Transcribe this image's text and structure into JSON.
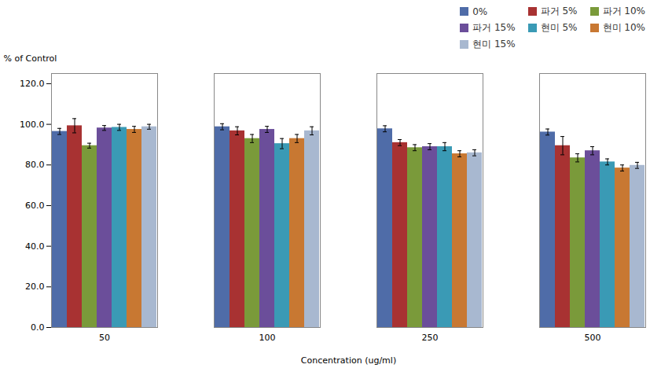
{
  "chart_data": {
    "type": "bar",
    "categories": [
      "50",
      "100",
      "250",
      "500"
    ],
    "series": [
      {
        "name": "0%",
        "color": "#4F6CA8",
        "values": [
          96.5,
          98.8,
          97.8,
          96.2
        ],
        "errors": [
          1.5,
          1.5,
          1.5,
          1.5
        ]
      },
      {
        "name": "파거 5%",
        "color": "#A83232",
        "values": [
          99.3,
          96.8,
          91.0,
          89.5
        ],
        "errors": [
          3.5,
          2.0,
          1.5,
          4.5
        ]
      },
      {
        "name": "파거 10%",
        "color": "#7A9A3A",
        "values": [
          89.5,
          93.0,
          88.5,
          83.5
        ],
        "errors": [
          1.2,
          2.0,
          1.5,
          2.0
        ]
      },
      {
        "name": "파거 15%",
        "color": "#6B4E9A",
        "values": [
          98.2,
          97.5,
          89.0,
          87.0
        ],
        "errors": [
          1.2,
          1.5,
          1.5,
          2.0
        ]
      },
      {
        "name": "현미 5%",
        "color": "#3A9AB5",
        "values": [
          98.5,
          90.5,
          89.0,
          81.5
        ],
        "errors": [
          1.5,
          2.5,
          2.0,
          1.5
        ]
      },
      {
        "name": "현미 10%",
        "color": "#C87832",
        "values": [
          97.5,
          93.0,
          85.5,
          78.5
        ],
        "errors": [
          1.5,
          2.0,
          1.5,
          1.5
        ]
      },
      {
        "name": "현미 15%",
        "color": "#A8B8D0",
        "values": [
          98.8,
          96.8,
          86.0,
          79.8
        ],
        "errors": [
          1.2,
          2.0,
          1.5,
          1.5
        ]
      }
    ],
    "xlabel": "Concentration (ug/ml)",
    "ylabel": "% of Control",
    "ylim": [
      0,
      125
    ],
    "yticks": [
      {
        "value": 0,
        "label": "0.0"
      },
      {
        "value": 20,
        "label": "20.0"
      },
      {
        "value": 40,
        "label": "40.0"
      },
      {
        "value": 60,
        "label": "60.0"
      },
      {
        "value": 80,
        "label": "80.0"
      },
      {
        "value": 100,
        "label": "100.0"
      },
      {
        "value": 120,
        "label": "120.0"
      }
    ],
    "legend": "upper right"
  }
}
